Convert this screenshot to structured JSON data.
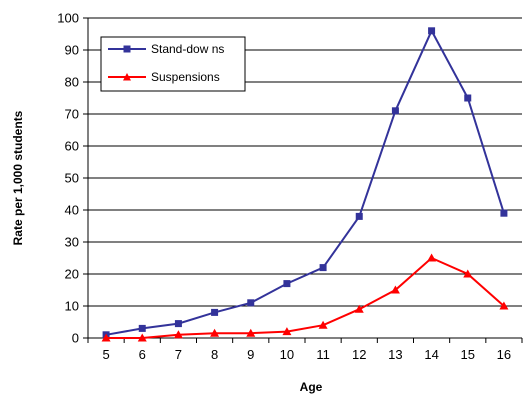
{
  "chart_data": {
    "type": "line",
    "title": "",
    "xlabel": "Age",
    "ylabel": "Rate per 1,000 students",
    "x": [
      5,
      6,
      7,
      8,
      9,
      10,
      11,
      12,
      13,
      14,
      15,
      16
    ],
    "ylim": [
      0,
      100
    ],
    "yticks": [
      0,
      10,
      20,
      30,
      40,
      50,
      60,
      70,
      80,
      90,
      100
    ],
    "grid": true,
    "legend_position": "top-left",
    "series": [
      {
        "name": "Stand-dow ns",
        "color": "#33339a",
        "marker": "square",
        "values": [
          1,
          3,
          4.5,
          8,
          11,
          17,
          22,
          38,
          71,
          96,
          75,
          39
        ]
      },
      {
        "name": "Suspensions",
        "color": "#ff0000",
        "marker": "triangle",
        "values": [
          0,
          0,
          1,
          1.5,
          1.5,
          2,
          4,
          9,
          15,
          25,
          20,
          10
        ]
      }
    ]
  }
}
